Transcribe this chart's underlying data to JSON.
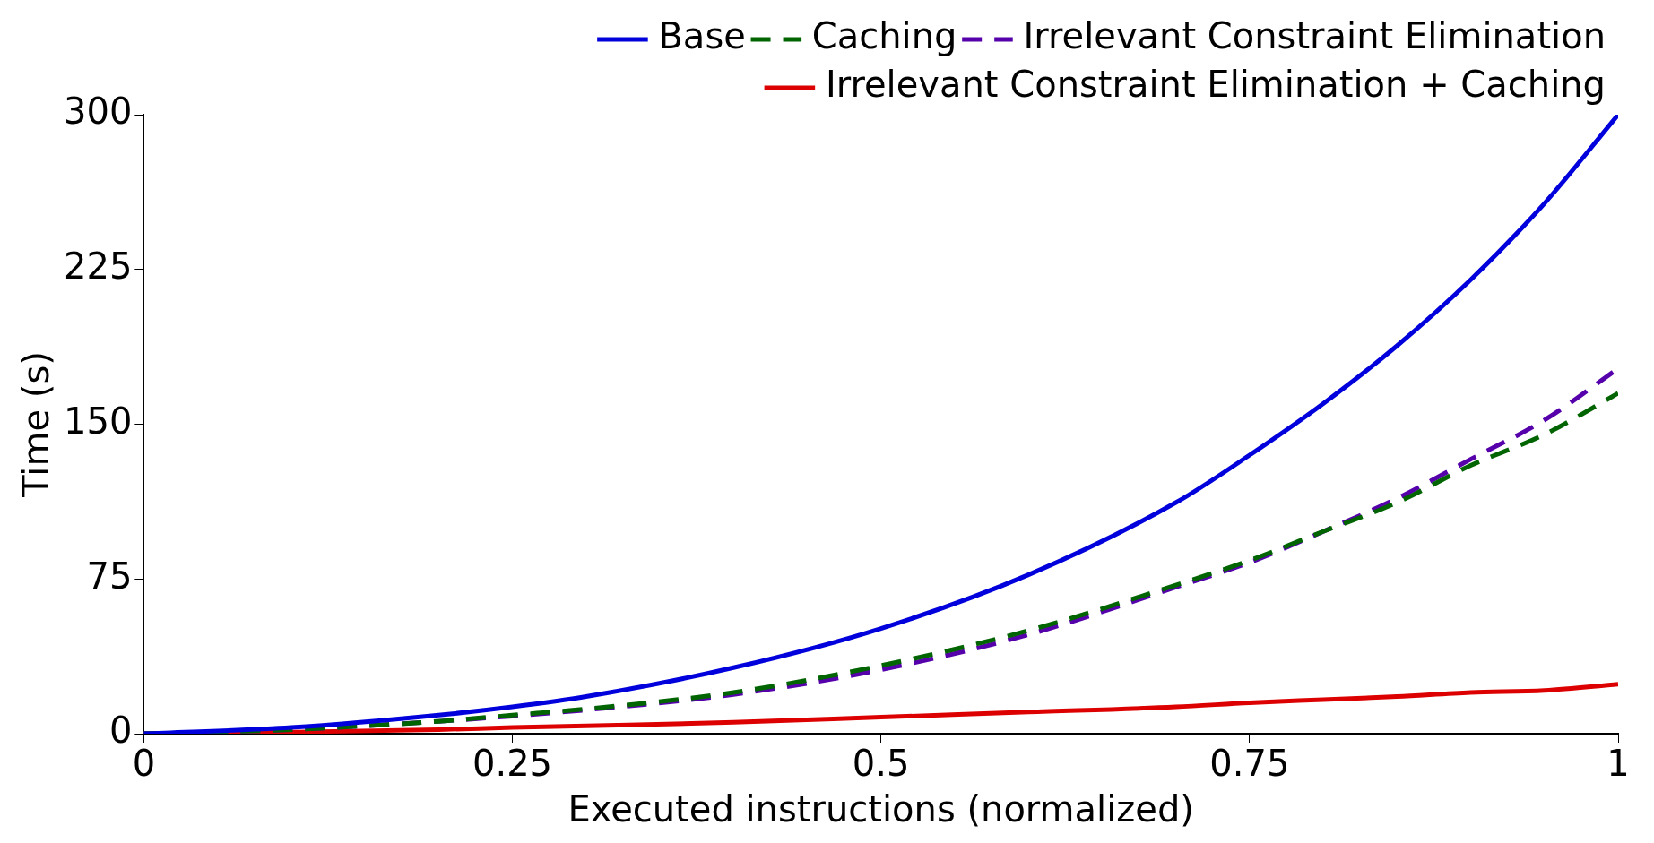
{
  "chart_data": {
    "type": "line",
    "xlabel": "Executed instructions (normalized)",
    "ylabel": "Time (s)",
    "xlim": [
      0,
      1
    ],
    "xticks": [
      0,
      0.25,
      0.5,
      0.75,
      1
    ],
    "ylim": [
      0,
      300
    ],
    "yticks": [
      0,
      75,
      150,
      225,
      300
    ],
    "grid": false,
    "legend": "top right",
    "marker": "none",
    "x": [
      0,
      0.1,
      0.2,
      0.25,
      0.3,
      0.4,
      0.5,
      0.6,
      0.7,
      0.75,
      0.8,
      0.85,
      0.9,
      0.95,
      1
    ],
    "series": [
      {
        "name": "Base",
        "color": "#0000dd",
        "line_style": "solid",
        "values": [
          0,
          3,
          9,
          13,
          18,
          32,
          51,
          77,
          112,
          135,
          160,
          188,
          220,
          257,
          300
        ]
      },
      {
        "name": "Caching",
        "color": "#006400",
        "line_style": "dashed",
        "values": [
          0,
          2,
          6,
          9,
          12,
          20,
          33,
          50,
          72,
          84,
          98,
          112,
          130,
          145,
          165
        ]
      },
      {
        "name": "Irrelevant Constraint Elimination",
        "color": "#5500aa",
        "line_style": "dashed",
        "values": [
          0,
          2,
          6,
          8.5,
          11.5,
          19,
          31,
          48,
          71,
          83,
          98,
          114,
          133,
          152,
          177
        ]
      },
      {
        "name": "Irrelevant Constraint Elimination + Caching",
        "color": "#dd0000",
        "line_style": "solid",
        "values": [
          0,
          0.8,
          2,
          3,
          3.8,
          5.5,
          8,
          10.5,
          13,
          15,
          16.5,
          18,
          20,
          21,
          24
        ]
      }
    ]
  }
}
